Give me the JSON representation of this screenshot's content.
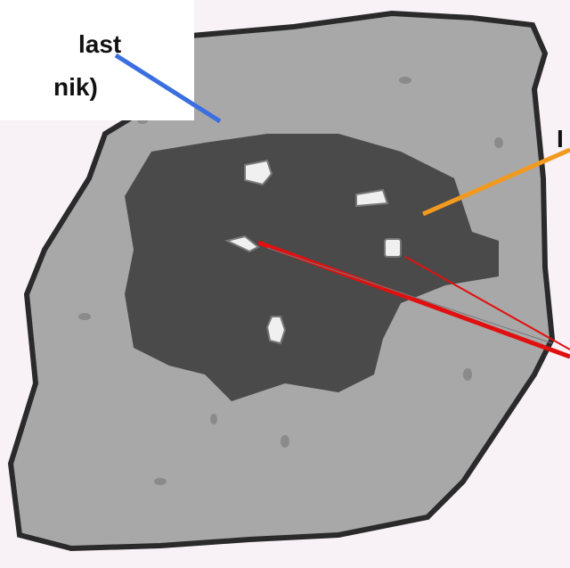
{
  "labels": {
    "top_left": [
      "last",
      "nik)"
    ],
    "right": "I"
  }
}
